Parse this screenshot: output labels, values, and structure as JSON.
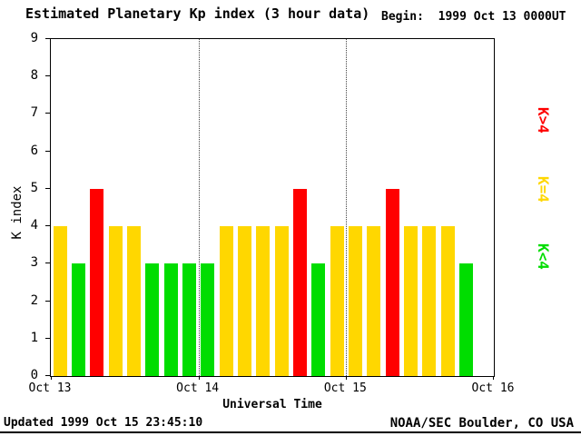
{
  "header": {
    "begin_label": "Begin:",
    "begin_value": "1999 Oct 13 0000UT"
  },
  "footer": {
    "updated": "Updated 1999 Oct 15 23:45:10",
    "credit": "NOAA/SEC Boulder, CO USA"
  },
  "chart_data": {
    "type": "bar",
    "title": "Estimated Planetary Kp index (3 hour data)",
    "xlabel": "Universal Time",
    "ylabel": "K index",
    "ylim": [
      0,
      9
    ],
    "yticks": [
      0,
      1,
      2,
      3,
      4,
      5,
      6,
      7,
      8,
      9
    ],
    "xtick_labels": [
      "Oct 13",
      "Oct 14",
      "Oct 15",
      "Oct 16"
    ],
    "slots_total": 24,
    "bars_per_day": 8,
    "values": [
      4,
      3,
      5,
      4,
      4,
      3,
      3,
      3,
      3,
      4,
      4,
      4,
      4,
      5,
      3,
      4,
      4,
      4,
      5,
      4,
      4,
      4,
      3
    ],
    "bar_colors": {
      "below4": "#00dd00",
      "equal4": "#ffd700",
      "above4": "#ff0000"
    },
    "color_rule": "green K<4, yellow K=4, red K>4",
    "grid": {
      "day_boundary_slots": [
        8,
        16
      ],
      "style": "dotted-vertical"
    },
    "legend_position": "right-rotated",
    "legend": [
      {
        "label": "K>4",
        "color": "#ff0000"
      },
      {
        "label": "K=4",
        "color": "#ffd700"
      },
      {
        "label": "K<4",
        "color": "#00dd00"
      }
    ]
  }
}
